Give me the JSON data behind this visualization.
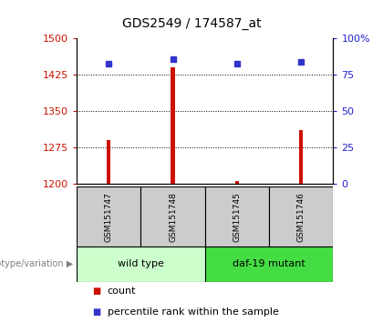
{
  "title": "GDS2549 / 174587_at",
  "samples": [
    "GSM151747",
    "GSM151748",
    "GSM151745",
    "GSM151746"
  ],
  "counts": [
    1290,
    1440,
    1205,
    1310
  ],
  "percentiles": [
    83,
    86,
    83,
    84
  ],
  "ylim_left": [
    1200,
    1500
  ],
  "yticks_left": [
    1200,
    1275,
    1350,
    1425,
    1500
  ],
  "ylim_right": [
    0,
    100
  ],
  "yticks_right": [
    0,
    25,
    50,
    75,
    100
  ],
  "bar_color": "#cc1100",
  "square_color": "#3333cc",
  "bar_width": 0.06,
  "groups": [
    {
      "label": "wild type",
      "samples": [
        0,
        1
      ],
      "color": "#ccffcc"
    },
    {
      "label": "daf-19 mutant",
      "samples": [
        2,
        3
      ],
      "color": "#44dd44"
    }
  ],
  "group_label": "genotype/variation",
  "legend_count_label": "count",
  "legend_pct_label": "percentile rank within the sample",
  "background_color": "#ffffff",
  "tick_label_color_left": "#cc1100",
  "tick_label_color_right": "#2222cc",
  "sample_box_color": "#cccccc",
  "title_fontsize": 10,
  "axis_fontsize": 8,
  "legend_fontsize": 8
}
